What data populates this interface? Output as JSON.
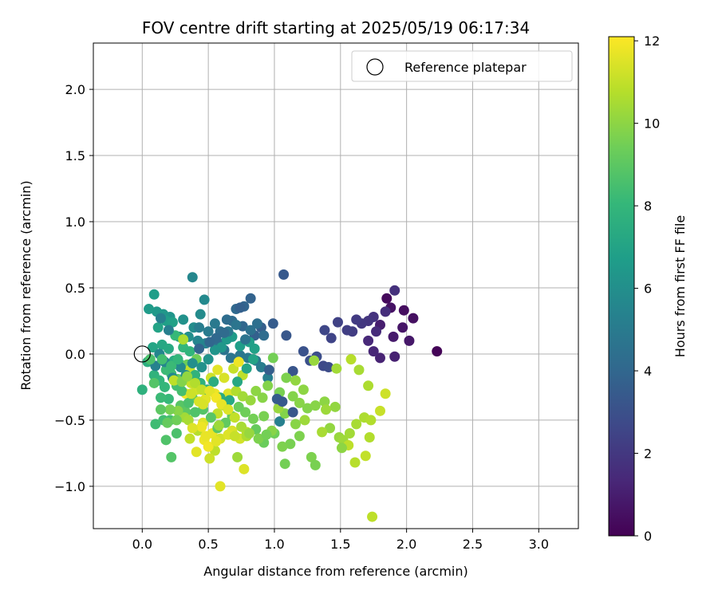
{
  "chart_data": {
    "type": "scatter",
    "title": "FOV centre drift starting at 2025/05/19 06:17:34",
    "xlabel": "Angular distance from reference (arcmin)",
    "ylabel": "Rotation from reference (arcmin)",
    "xlim": [
      -0.37,
      3.3
    ],
    "ylim": [
      -1.32,
      2.35
    ],
    "x_ticks": [
      0.0,
      0.5,
      1.0,
      1.5,
      2.0,
      2.5,
      3.0
    ],
    "x_tick_labels": [
      "0.0",
      "0.5",
      "1.0",
      "1.5",
      "2.0",
      "2.5",
      "3.0"
    ],
    "y_ticks": [
      -1.0,
      -0.5,
      0.0,
      0.5,
      1.0,
      1.5,
      2.0
    ],
    "y_tick_labels": [
      "−1.0",
      "−0.5",
      "0.0",
      "0.5",
      "1.0",
      "1.5",
      "2.0"
    ],
    "grid": true,
    "legend": {
      "position": "top-right",
      "entries": [
        "Reference platepar"
      ]
    },
    "reference_point": {
      "x": 0.0,
      "y": 0.0
    },
    "colorbar": {
      "label": "Hours from first FF file",
      "min": 0,
      "max": 12.1,
      "ticks": [
        0,
        2,
        4,
        6,
        8,
        10,
        12
      ],
      "tick_labels": [
        "0",
        "2",
        "4",
        "6",
        "8",
        "10",
        "12"
      ],
      "colormap": "viridis"
    },
    "colormap_stops": [
      "#440154",
      "#482878",
      "#3e4989",
      "#31688e",
      "#26828e",
      "#1f9e89",
      "#35b779",
      "#6ece58",
      "#b5de2b",
      "#fde725"
    ],
    "points": [
      [
        2.23,
        0.02,
        0.1
      ],
      [
        1.85,
        0.42,
        0.3
      ],
      [
        1.98,
        0.33,
        0.4
      ],
      [
        2.05,
        0.27,
        0.5
      ],
      [
        1.88,
        0.35,
        0.6
      ],
      [
        1.97,
        0.2,
        0.7
      ],
      [
        2.02,
        0.1,
        0.8
      ],
      [
        1.9,
        0.13,
        0.9
      ],
      [
        1.8,
        0.22,
        1.0
      ],
      [
        1.91,
        -0.02,
        1.1
      ],
      [
        1.8,
        -0.03,
        1.2
      ],
      [
        1.75,
        0.02,
        1.3
      ],
      [
        1.71,
        0.1,
        1.4
      ],
      [
        1.77,
        0.17,
        1.5
      ],
      [
        1.84,
        0.32,
        1.6
      ],
      [
        1.91,
        0.48,
        1.7
      ],
      [
        1.75,
        0.28,
        1.8
      ],
      [
        1.71,
        0.25,
        1.9
      ],
      [
        1.66,
        0.23,
        2.0
      ],
      [
        1.62,
        0.26,
        2.1
      ],
      [
        1.59,
        0.17,
        2.2
      ],
      [
        1.55,
        0.18,
        2.3
      ],
      [
        1.48,
        0.24,
        2.4
      ],
      [
        1.43,
        0.12,
        2.5
      ],
      [
        1.38,
        0.18,
        2.6
      ],
      [
        1.37,
        -0.09,
        2.7
      ],
      [
        1.41,
        -0.1,
        2.8
      ],
      [
        1.32,
        -0.02,
        2.9
      ],
      [
        1.27,
        -0.05,
        3.0
      ],
      [
        1.22,
        0.02,
        3.1
      ],
      [
        1.14,
        -0.13,
        3.2
      ],
      [
        1.09,
        0.14,
        3.3
      ],
      [
        1.07,
        0.6,
        3.4
      ],
      [
        0.99,
        0.23,
        3.5
      ],
      [
        0.9,
        0.2,
        3.6
      ],
      [
        0.85,
        0.14,
        3.7
      ],
      [
        0.82,
        0.42,
        3.8
      ],
      [
        0.77,
        0.36,
        3.9
      ],
      [
        0.76,
        0.21,
        4.0
      ],
      [
        0.71,
        0.34,
        4.1
      ],
      [
        0.68,
        0.25,
        4.2
      ],
      [
        0.64,
        0.26,
        4.3
      ],
      [
        0.59,
        0.17,
        4.4
      ],
      [
        0.58,
        0.08,
        4.5
      ],
      [
        0.62,
        0.03,
        4.6
      ],
      [
        0.67,
        -0.03,
        4.7
      ],
      [
        0.74,
        -0.01,
        4.8
      ],
      [
        0.8,
        -0.03,
        4.9
      ],
      [
        0.86,
        -0.05,
        5.0
      ],
      [
        0.9,
        -0.1,
        5.1
      ],
      [
        0.95,
        -0.18,
        5.2
      ],
      [
        1.04,
        -0.51,
        5.3
      ],
      [
        0.48,
        0.08,
        5.4
      ],
      [
        0.42,
        0.1,
        5.5
      ],
      [
        0.38,
        0.58,
        5.6
      ],
      [
        0.47,
        0.41,
        5.7
      ],
      [
        0.44,
        0.3,
        5.8
      ],
      [
        0.39,
        0.2,
        5.9
      ],
      [
        0.35,
        0.13,
        6.0
      ],
      [
        0.31,
        0.26,
        6.1
      ],
      [
        0.28,
        0.13,
        6.2
      ],
      [
        0.21,
        0.28,
        6.3
      ],
      [
        0.16,
        0.3,
        6.4
      ],
      [
        0.11,
        0.32,
        6.5
      ],
      [
        0.05,
        0.34,
        6.6
      ],
      [
        0.09,
        0.45,
        6.7
      ],
      [
        0.18,
        0.25,
        6.8
      ],
      [
        0.23,
        0.24,
        6.9
      ],
      [
        0.12,
        0.2,
        7.0
      ],
      [
        0.08,
        0.05,
        7.1
      ],
      [
        0.15,
        0.07,
        7.2
      ],
      [
        0.2,
        0.04,
        7.3
      ],
      [
        0.24,
        -0.05,
        7.4
      ],
      [
        0.29,
        -0.08,
        7.5
      ],
      [
        0.04,
        -0.06,
        7.6
      ],
      [
        0.0,
        -0.27,
        7.7
      ],
      [
        0.09,
        -0.16,
        7.8
      ],
      [
        0.13,
        -0.2,
        7.9
      ],
      [
        0.17,
        -0.25,
        8.0
      ],
      [
        0.2,
        -0.34,
        8.1
      ],
      [
        0.14,
        -0.33,
        8.2
      ],
      [
        0.1,
        -0.53,
        8.3
      ],
      [
        0.16,
        -0.5,
        8.4
      ],
      [
        0.21,
        -0.5,
        8.5
      ],
      [
        0.26,
        -0.6,
        8.6
      ],
      [
        0.18,
        -0.65,
        8.7
      ],
      [
        0.22,
        -0.78,
        8.8
      ],
      [
        0.29,
        -0.39,
        8.9
      ],
      [
        0.33,
        -0.44,
        9.0
      ],
      [
        0.38,
        -0.33,
        9.1
      ],
      [
        0.27,
        -0.19,
        9.2
      ],
      [
        0.34,
        -0.08,
        9.3
      ],
      [
        0.41,
        -0.04,
        9.4
      ],
      [
        0.99,
        -0.03,
        9.5
      ],
      [
        1.12,
        -0.68,
        9.6
      ],
      [
        1.19,
        -0.62,
        9.7
      ],
      [
        1.25,
        -0.41,
        9.8
      ],
      [
        1.31,
        -0.39,
        9.9
      ],
      [
        1.38,
        -0.36,
        10.0
      ],
      [
        1.42,
        -0.56,
        10.1
      ],
      [
        1.49,
        -0.63,
        10.2
      ],
      [
        1.52,
        -0.65,
        10.3
      ],
      [
        1.57,
        -0.6,
        10.4
      ],
      [
        1.62,
        -0.53,
        10.5
      ],
      [
        1.68,
        -0.48,
        10.6
      ],
      [
        1.73,
        -0.5,
        10.7
      ],
      [
        1.58,
        -0.04,
        10.8
      ],
      [
        1.74,
        -1.23,
        10.9
      ],
      [
        1.69,
        -0.77,
        11.0
      ],
      [
        1.8,
        -0.43,
        11.1
      ],
      [
        1.84,
        -0.3,
        11.2
      ],
      [
        1.28,
        -0.78,
        9.7
      ],
      [
        1.31,
        -0.84,
        9.6
      ],
      [
        1.08,
        -0.83,
        9.5
      ],
      [
        1.0,
        -0.6,
        9.4
      ],
      [
        0.92,
        -0.67,
        9.3
      ],
      [
        0.86,
        -0.57,
        9.2
      ],
      [
        0.79,
        -0.59,
        10.8
      ],
      [
        0.74,
        -0.64,
        11.3
      ],
      [
        0.68,
        -0.58,
        11.4
      ],
      [
        0.59,
        -1.0,
        11.6
      ],
      [
        0.77,
        -0.87,
        11.5
      ],
      [
        0.72,
        -0.78,
        10.3
      ],
      [
        0.55,
        -0.73,
        10.9
      ],
      [
        0.51,
        -0.79,
        11.2
      ],
      [
        0.41,
        -0.74,
        11.6
      ],
      [
        0.47,
        -0.65,
        11.8
      ],
      [
        0.53,
        -0.6,
        11.7
      ],
      [
        0.36,
        -0.64,
        11.0
      ],
      [
        0.32,
        -0.48,
        10.4
      ],
      [
        0.46,
        -0.52,
        11.5
      ],
      [
        0.57,
        -0.45,
        11.0
      ],
      [
        0.62,
        -0.39,
        10.7
      ],
      [
        0.65,
        -0.3,
        11.5
      ],
      [
        0.55,
        -0.3,
        11.8
      ],
      [
        0.48,
        -0.34,
        11.6
      ],
      [
        0.43,
        -0.36,
        11.4
      ],
      [
        0.41,
        -0.27,
        11.3
      ],
      [
        0.37,
        -0.22,
        11.1
      ],
      [
        0.33,
        -0.3,
        11.9
      ],
      [
        0.36,
        -0.12,
        11.0
      ],
      [
        0.52,
        -0.18,
        11.2
      ],
      [
        0.57,
        -0.12,
        11.6
      ],
      [
        0.62,
        -0.18,
        11.4
      ],
      [
        0.69,
        -0.11,
        11.1
      ],
      [
        0.73,
        -0.06,
        11.8
      ],
      [
        0.76,
        -0.16,
        10.9
      ],
      [
        0.71,
        -0.28,
        10.7
      ],
      [
        0.76,
        -0.32,
        10.4
      ],
      [
        0.82,
        -0.35,
        10.2
      ],
      [
        0.86,
        -0.28,
        10.0
      ],
      [
        0.91,
        -0.33,
        9.9
      ],
      [
        0.95,
        -0.24,
        9.8
      ],
      [
        1.04,
        -0.29,
        9.6
      ],
      [
        1.09,
        -0.18,
        9.7
      ],
      [
        1.14,
        -0.32,
        9.8
      ],
      [
        1.19,
        -0.37,
        9.9
      ],
      [
        1.22,
        -0.27,
        10.0
      ],
      [
        1.16,
        -0.2,
        10.1
      ],
      [
        1.3,
        -0.05,
        10.2
      ],
      [
        1.47,
        -0.11,
        10.4
      ],
      [
        1.64,
        -0.12,
        10.5
      ],
      [
        1.71,
        -0.24,
        10.6
      ],
      [
        1.72,
        -0.63,
        10.7
      ],
      [
        1.61,
        -0.82,
        10.8
      ],
      [
        1.56,
        -0.69,
        10.9
      ],
      [
        1.51,
        -0.71,
        10.0
      ],
      [
        1.46,
        -0.4,
        10.1
      ],
      [
        1.39,
        -0.42,
        10.3
      ],
      [
        1.36,
        -0.59,
        10.5
      ],
      [
        1.23,
        -0.5,
        10.3
      ],
      [
        1.16,
        -0.53,
        9.9
      ],
      [
        1.08,
        -0.45,
        9.8
      ],
      [
        1.03,
        -0.41,
        10.2
      ],
      [
        1.06,
        -0.7,
        9.7
      ],
      [
        0.98,
        -0.58,
        9.9
      ],
      [
        0.92,
        -0.47,
        9.6
      ],
      [
        0.84,
        -0.49,
        9.5
      ],
      [
        0.78,
        -0.44,
        9.4
      ],
      [
        0.73,
        -0.4,
        9.3
      ],
      [
        0.68,
        -0.47,
        9.2
      ],
      [
        0.63,
        -0.52,
        9.1
      ],
      [
        0.57,
        -0.56,
        9.0
      ],
      [
        0.52,
        -0.48,
        8.9
      ],
      [
        0.46,
        -0.42,
        8.8
      ],
      [
        0.4,
        -0.44,
        8.7
      ],
      [
        0.35,
        -0.37,
        8.6
      ],
      [
        0.3,
        -0.28,
        8.5
      ],
      [
        0.26,
        -0.24,
        8.4
      ],
      [
        0.22,
        -0.15,
        8.3
      ],
      [
        0.18,
        -0.12,
        8.2
      ],
      [
        0.25,
        0.14,
        8.1
      ],
      [
        0.31,
        0.05,
        8.0
      ],
      [
        0.36,
        0.02,
        7.9
      ],
      [
        0.4,
        -0.16,
        7.8
      ],
      [
        0.44,
        -0.22,
        7.7
      ],
      [
        0.49,
        -0.27,
        7.6
      ],
      [
        0.54,
        -0.21,
        7.5
      ],
      [
        0.59,
        -0.33,
        7.4
      ],
      [
        0.66,
        -0.35,
        7.3
      ],
      [
        0.72,
        -0.21,
        7.2
      ],
      [
        0.79,
        -0.11,
        7.1
      ],
      [
        0.84,
        -0.04,
        7.0
      ],
      [
        0.85,
        0.04,
        6.9
      ],
      [
        0.81,
        0.09,
        6.8
      ],
      [
        0.74,
        0.06,
        6.7
      ],
      [
        0.68,
        0.13,
        6.6
      ],
      [
        0.64,
        0.11,
        6.5
      ],
      [
        0.6,
        0.05,
        6.4
      ],
      [
        0.55,
        0.03,
        6.3
      ],
      [
        0.5,
        -0.04,
        6.2
      ],
      [
        0.45,
        -0.1,
        6.1
      ],
      [
        0.38,
        -0.07,
        6.0
      ],
      [
        0.33,
        -0.16,
        5.9
      ],
      [
        0.29,
        -0.1,
        5.8
      ],
      [
        0.23,
        -0.18,
        5.7
      ],
      [
        0.17,
        -0.06,
        5.6
      ],
      [
        0.13,
        0.0,
        5.5
      ],
      [
        0.1,
        -0.09,
        5.4
      ],
      [
        0.14,
        0.27,
        5.3
      ],
      [
        0.2,
        0.18,
        5.2
      ],
      [
        0.43,
        0.2,
        5.1
      ],
      [
        0.5,
        0.17,
        5.0
      ],
      [
        0.55,
        0.23,
        4.9
      ],
      [
        0.65,
        0.17,
        4.8
      ],
      [
        0.71,
        0.22,
        4.7
      ],
      [
        0.78,
        0.11,
        4.6
      ],
      [
        0.82,
        0.18,
        4.5
      ],
      [
        0.87,
        0.23,
        4.4
      ],
      [
        0.92,
        0.14,
        4.3
      ],
      [
        0.62,
        0.16,
        4.2
      ],
      [
        0.56,
        0.12,
        4.1
      ],
      [
        0.51,
        0.09,
        4.0
      ],
      [
        0.43,
        0.04,
        3.9
      ],
      [
        0.74,
        0.35,
        3.7
      ],
      [
        0.96,
        -0.12,
        3.6
      ],
      [
        1.02,
        -0.34,
        3.5
      ],
      [
        1.06,
        -0.36,
        3.4
      ],
      [
        1.14,
        -0.44,
        3.3
      ],
      [
        0.31,
        0.11,
        10.6
      ],
      [
        0.24,
        -0.2,
        10.9
      ],
      [
        0.37,
        -0.3,
        11.2
      ],
      [
        0.46,
        -0.38,
        11.4
      ],
      [
        0.59,
        -0.64,
        11.3
      ],
      [
        0.65,
        -0.61,
        11.5
      ],
      [
        0.7,
        -0.62,
        11.1
      ],
      [
        0.79,
        -0.62,
        10.6
      ],
      [
        0.58,
        -0.54,
        10.3
      ],
      [
        0.42,
        -0.58,
        10.8
      ],
      [
        0.35,
        -0.5,
        10.5
      ],
      [
        0.27,
        -0.43,
        9.9
      ],
      [
        0.21,
        -0.42,
        9.6
      ],
      [
        0.26,
        -0.5,
        9.4
      ],
      [
        0.19,
        -0.52,
        9.2
      ],
      [
        0.14,
        -0.42,
        9.0
      ],
      [
        0.09,
        -0.22,
        8.8
      ],
      [
        0.06,
        -0.04,
        8.6
      ],
      [
        0.15,
        -0.04,
        8.4
      ],
      [
        0.22,
        -0.09,
        8.2
      ],
      [
        0.27,
        -0.04,
        8.0
      ],
      [
        0.3,
        -0.21,
        9.8
      ],
      [
        0.34,
        -0.17,
        10.1
      ],
      [
        0.4,
        -0.22,
        10.7
      ],
      [
        0.45,
        -0.27,
        11.0
      ],
      [
        0.51,
        -0.28,
        11.6
      ],
      [
        0.56,
        -0.33,
        11.9
      ],
      [
        0.6,
        -0.38,
        11.7
      ],
      [
        0.65,
        -0.42,
        11.5
      ],
      [
        0.7,
        -0.48,
        11.0
      ],
      [
        0.75,
        -0.55,
        10.5
      ],
      [
        0.81,
        -0.6,
        10.2
      ],
      [
        0.88,
        -0.64,
        9.7
      ],
      [
        0.94,
        -0.61,
        9.5
      ],
      [
        0.48,
        -0.62,
        11.7
      ],
      [
        0.45,
        -0.55,
        11.8
      ],
      [
        0.38,
        -0.56,
        11.5
      ],
      [
        0.5,
        -0.7,
        11.9
      ],
      [
        0.56,
        -0.66,
        11.6
      ]
    ]
  }
}
